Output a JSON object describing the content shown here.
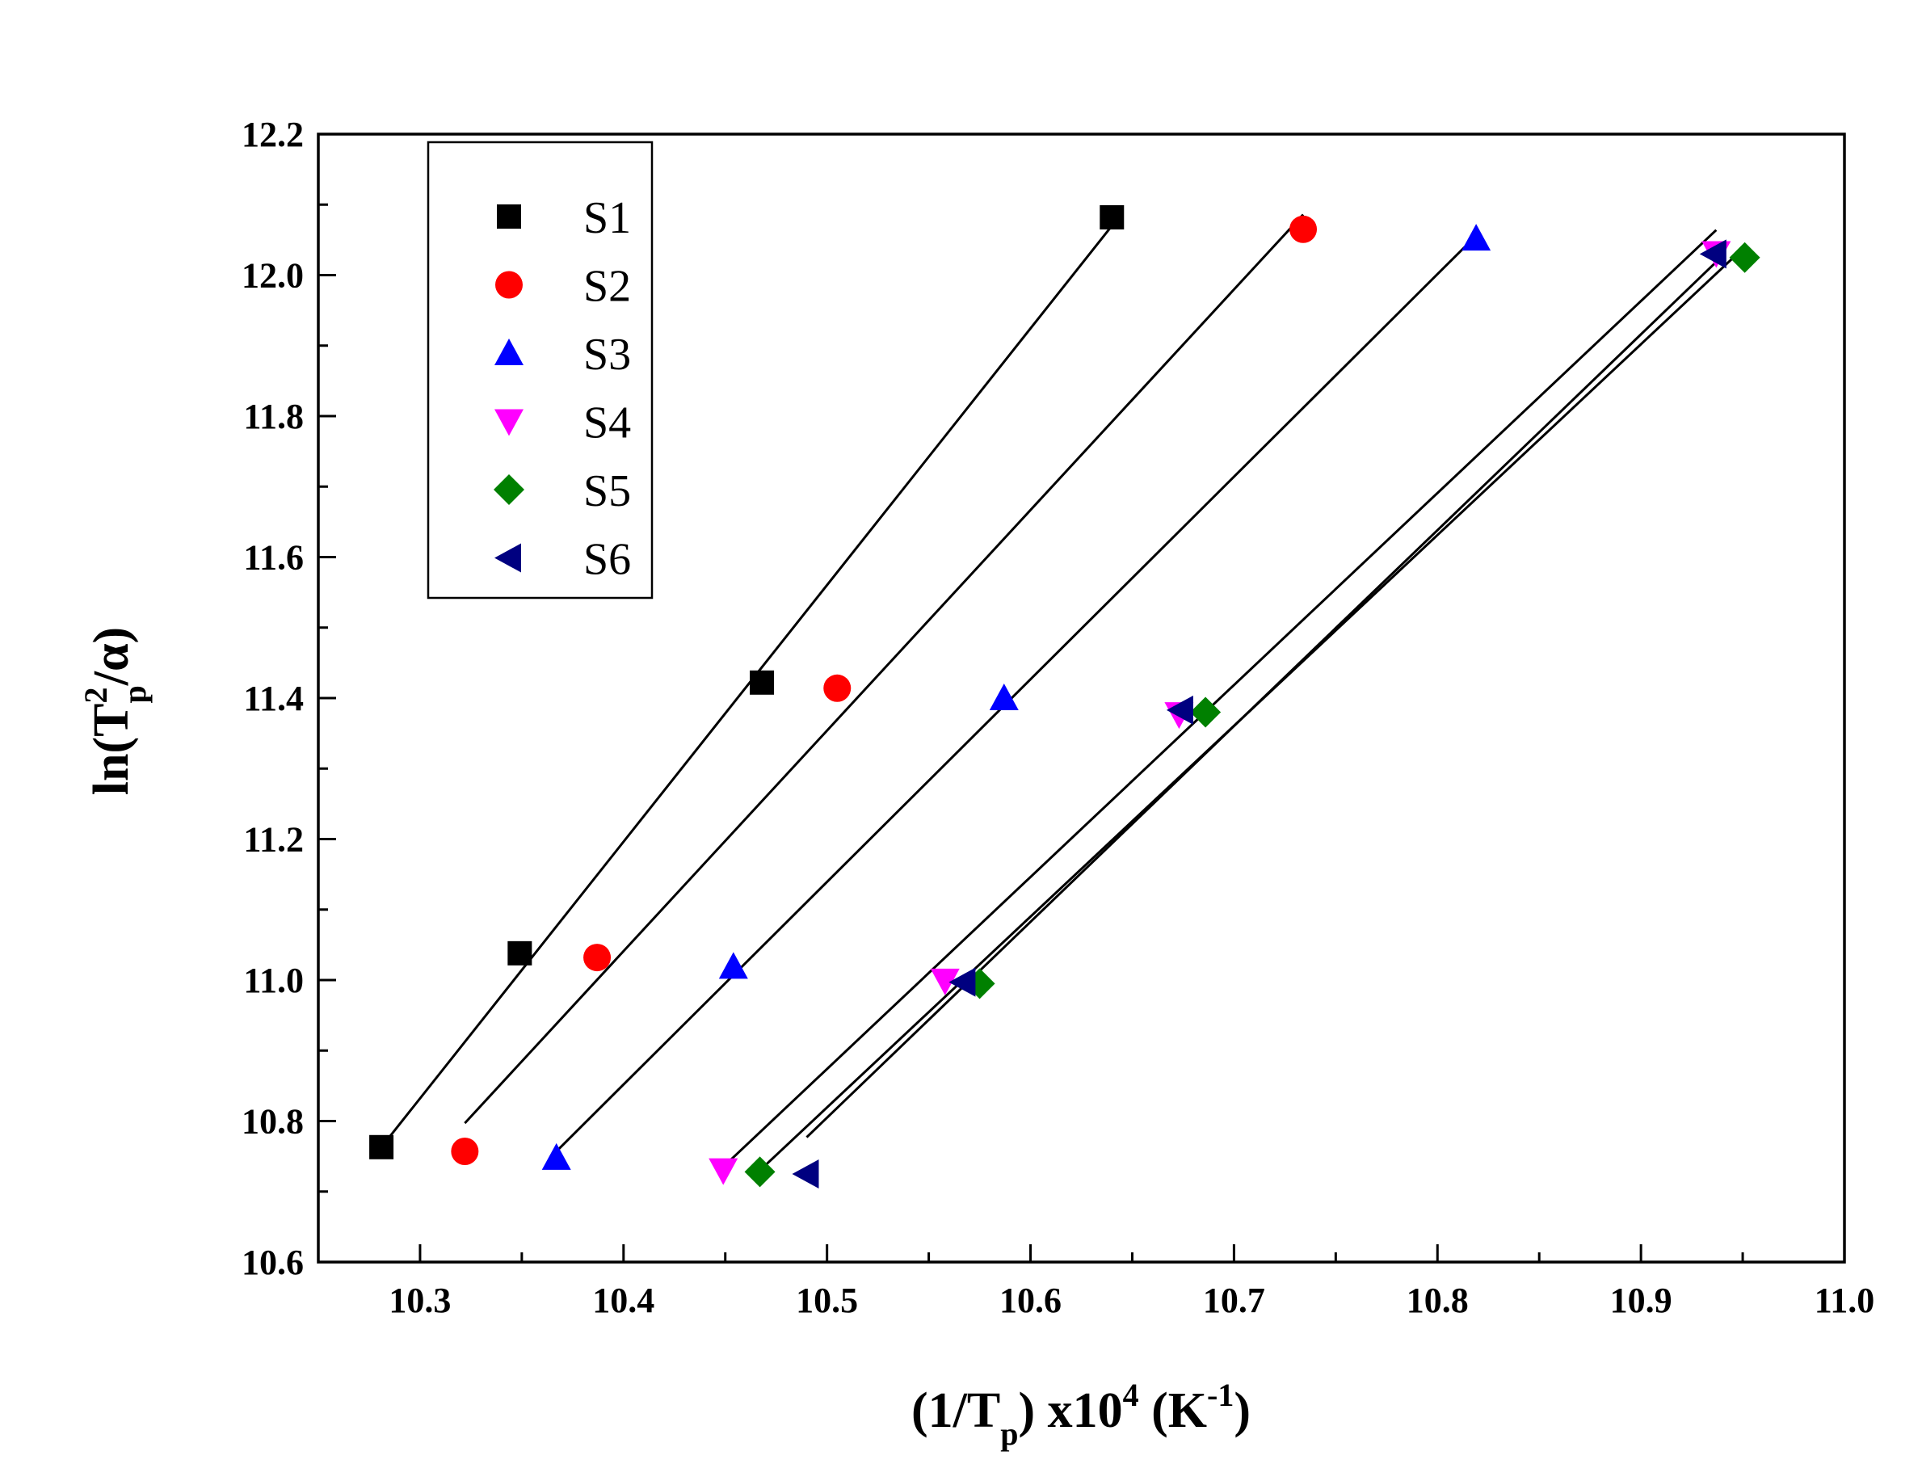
{
  "chart_data": {
    "type": "scatter",
    "title": "",
    "xlabel": {
      "prefix": "(1/T",
      "sub": "p",
      "middle": ") x10",
      "sup": "4",
      "unit_open": " (K",
      "unit_sup": "-1",
      "unit_close": ")"
    },
    "ylabel": {
      "prefix": "ln(T",
      "sup": "2",
      "sub": "p",
      "suffix": "/α)"
    },
    "xlim": [
      10.25,
      11.0
    ],
    "ylim": [
      10.6,
      12.2
    ],
    "x_ticks": [
      "10.3",
      "10.4",
      "10.5",
      "10.6",
      "10.7",
      "10.8",
      "10.9",
      "11.0"
    ],
    "y_ticks": [
      "10.6",
      "10.8",
      "11.0",
      "11.2",
      "11.4",
      "11.6",
      "11.8",
      "12.0",
      "12.2"
    ],
    "legend_position": "top-left",
    "series": [
      {
        "name": "S1",
        "marker": "square",
        "color": "#000000",
        "x": [
          10.281,
          10.349,
          10.468,
          10.64
        ],
        "y": [
          10.763,
          11.038,
          11.422,
          12.082
        ],
        "fit": {
          "x": [
            10.281,
            10.64
          ],
          "y": [
            10.763,
            12.07
          ]
        }
      },
      {
        "name": "S2",
        "marker": "circle",
        "color": "#ff0000",
        "x": [
          10.322,
          10.387,
          10.505,
          10.734
        ],
        "y": [
          10.757,
          11.032,
          11.414,
          12.065
        ],
        "fit": {
          "x": [
            10.322,
            10.734
          ],
          "y": [
            10.797,
            12.086
          ]
        }
      },
      {
        "name": "S3",
        "marker": "triangle-up",
        "color": "#0000ff",
        "x": [
          10.367,
          10.454,
          10.587,
          10.819
        ],
        "y": [
          10.748,
          11.019,
          11.4,
          12.052
        ],
        "fit": {
          "x": [
            10.367,
            10.819
          ],
          "y": [
            10.757,
            12.056
          ]
        }
      },
      {
        "name": "S4",
        "marker": "triangle-down",
        "color": "#ff00ff",
        "x": [
          10.449,
          10.558,
          10.673,
          10.937
        ],
        "y": [
          10.73,
          10.999,
          11.377,
          12.031
        ],
        "fit": {
          "x": [
            10.449,
            10.937
          ],
          "y": [
            10.735,
            12.064
          ]
        }
      },
      {
        "name": "S5",
        "marker": "diamond",
        "color": "#008000",
        "x": [
          10.467,
          10.575,
          10.686,
          10.951
        ],
        "y": [
          10.728,
          10.995,
          11.38,
          12.025
        ],
        "fit": {
          "x": [
            10.467,
            10.951
          ],
          "y": [
            10.73,
            12.04
          ]
        }
      },
      {
        "name": "S6",
        "marker": "triangle-left",
        "color": "#000080",
        "x": [
          10.49,
          10.567,
          10.674,
          10.936
        ],
        "y": [
          10.725,
          10.997,
          11.383,
          12.03
        ],
        "fit": {
          "x": [
            10.49,
            10.936
          ],
          "y": [
            10.777,
            12.016
          ]
        }
      }
    ]
  }
}
